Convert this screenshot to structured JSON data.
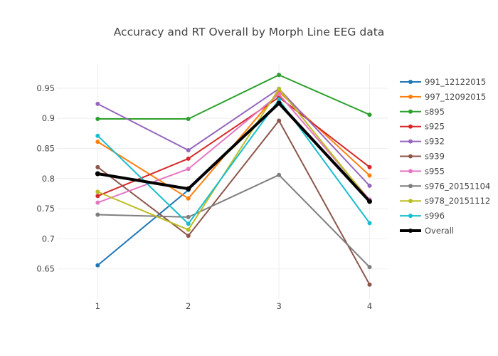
{
  "chart_data": {
    "type": "line",
    "title": "Accuracy and RT Overall by Morph Line EEG data",
    "xlabel": "",
    "ylabel": "",
    "x": [
      1,
      2,
      3,
      4
    ],
    "xlim": [
      0.55,
      4.2
    ],
    "ylim": [
      0.6,
      0.99
    ],
    "x_ticks": [
      "1",
      "2",
      "3",
      "4"
    ],
    "y_ticks": [
      "0.65",
      "0.7",
      "0.75",
      "0.8",
      "0.85",
      "0.9",
      "0.95"
    ],
    "grid": true,
    "legend_position": "right",
    "series": [
      {
        "name": "991_12122015",
        "color": "#1f77b4",
        "values": [
          0.656,
          0.781,
          0.925,
          0.765
        ]
      },
      {
        "name": "997_12092015",
        "color": "#ff7f0e",
        "values": [
          0.861,
          0.767,
          0.944,
          0.805
        ]
      },
      {
        "name": "s895",
        "color": "#2ca02c",
        "values": [
          0.899,
          0.899,
          0.972,
          0.906
        ]
      },
      {
        "name": "s925",
        "color": "#d62728",
        "values": [
          0.771,
          0.833,
          0.935,
          0.819
        ]
      },
      {
        "name": "s932",
        "color": "#9467bd",
        "values": [
          0.924,
          0.847,
          0.949,
          0.788
        ]
      },
      {
        "name": "s939",
        "color": "#8c564b",
        "values": [
          0.819,
          0.705,
          0.896,
          0.624
        ]
      },
      {
        "name": "s955",
        "color": "#e377c2",
        "values": [
          0.76,
          0.816,
          0.94,
          0.765
        ]
      },
      {
        "name": "s976_20151104",
        "color": "#7f7f7f",
        "values": [
          0.74,
          0.736,
          0.806,
          0.653
        ]
      },
      {
        "name": "s978_20151112",
        "color": "#bcbd22",
        "values": [
          0.778,
          0.715,
          0.949,
          0.763
        ]
      },
      {
        "name": "s996",
        "color": "#17becf",
        "values": [
          0.871,
          0.725,
          0.931,
          0.726
        ]
      },
      {
        "name": "Overall",
        "color": "#000000",
        "values": [
          0.808,
          0.783,
          0.925,
          0.762
        ],
        "bold": true
      }
    ]
  }
}
